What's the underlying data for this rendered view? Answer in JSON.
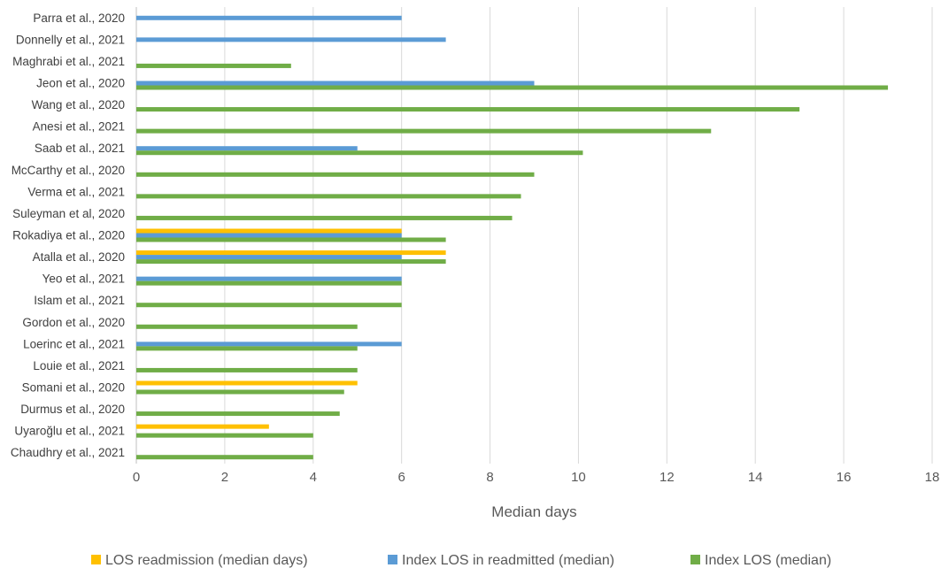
{
  "chart_data": {
    "type": "bar",
    "orientation": "horizontal",
    "categories": [
      "Parra et al., 2020",
      "Donnelly et al., 2021",
      "Maghrabi et al., 2021",
      "Jeon et al., 2020",
      "Wang et al., 2020",
      "Anesi et al., 2021",
      "Saab et al., 2021",
      "McCarthy et al., 2020",
      "Verma et al., 2021",
      "Suleyman et al, 2020",
      "Rokadiya et al., 2020",
      "Atalla et al., 2020",
      "Yeo et al., 2021",
      "Islam et al., 2021",
      "Gordon et al., 2020",
      "Loerinc et al., 2021",
      "Louie et al., 2021",
      "Somani et al., 2020",
      "Durmus et al., 2020",
      "Uyaroğlu et al., 2021",
      "Chaudhry et al., 2021"
    ],
    "series": [
      {
        "name": "LOS readmission (median days)",
        "color": "#FFC000",
        "values": [
          null,
          null,
          null,
          null,
          null,
          null,
          null,
          null,
          null,
          null,
          6,
          7,
          null,
          null,
          null,
          null,
          null,
          5,
          null,
          3,
          null
        ]
      },
      {
        "name": "Index LOS in readmitted (median)",
        "color": "#5B9BD5",
        "values": [
          6,
          7,
          null,
          9,
          null,
          null,
          5,
          null,
          null,
          null,
          6,
          6,
          6,
          null,
          null,
          6,
          null,
          null,
          null,
          null,
          null
        ]
      },
      {
        "name": "Index LOS (median)",
        "color": "#70AD47",
        "values": [
          null,
          null,
          3.5,
          17,
          15,
          13,
          10.1,
          9,
          8.7,
          8.5,
          7,
          7,
          6,
          6,
          5,
          5,
          5,
          4.7,
          4.6,
          4,
          4
        ]
      }
    ],
    "xlim": [
      0,
      18
    ],
    "xticks": [
      "0",
      "2",
      "4",
      "6",
      "8",
      "10",
      "12",
      "14",
      "16",
      "18"
    ],
    "xlabel": "Median days",
    "grid": true,
    "legend_position": "bottom"
  }
}
